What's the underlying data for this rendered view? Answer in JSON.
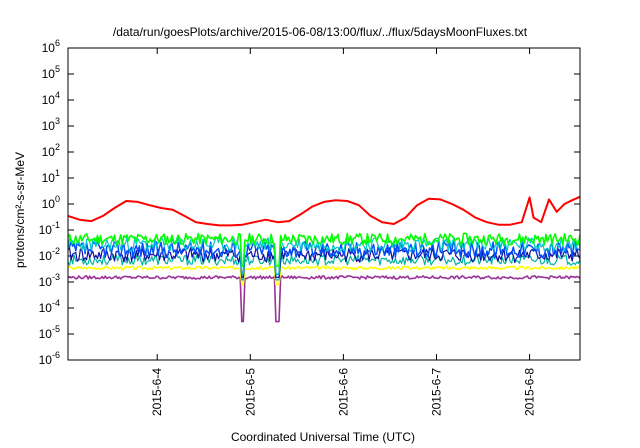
{
  "chart_data": {
    "type": "line",
    "title": "/data/run/goesPlots/archive/2015-06-08/13:00/flux/../flux/5daysMoonFluxes.txt",
    "xlabel": "Coordinated Universal Time (UTC)",
    "ylabel": "protons/cm²-s-sr-MeV",
    "y_scale": "log",
    "ylim": [
      "1e-6",
      "1e6"
    ],
    "y_ticks": [
      {
        "value": "1e-6",
        "base": "10",
        "exp": "-6"
      },
      {
        "value": "1e-5",
        "base": "10",
        "exp": "-5"
      },
      {
        "value": "1e-4",
        "base": "10",
        "exp": "-4"
      },
      {
        "value": "1e-3",
        "base": "10",
        "exp": "-3"
      },
      {
        "value": "1e-2",
        "base": "10",
        "exp": "-2"
      },
      {
        "value": "1e-1",
        "base": "10",
        "exp": "-1"
      },
      {
        "value": "1e0",
        "base": "10",
        "exp": "0"
      },
      {
        "value": "1e1",
        "base": "10",
        "exp": "1"
      },
      {
        "value": "1e2",
        "base": "10",
        "exp": "2"
      },
      {
        "value": "1e3",
        "base": "10",
        "exp": "3"
      },
      {
        "value": "1e4",
        "base": "10",
        "exp": "4"
      },
      {
        "value": "1e5",
        "base": "10",
        "exp": "5"
      },
      {
        "value": "1e6",
        "base": "10",
        "exp": "6"
      }
    ],
    "xlim": [
      "2015-06-03T01:00",
      "2015-06-08T13:00"
    ],
    "x_ticks": [
      {
        "date": "2015-06-04",
        "label": "2015-6-4"
      },
      {
        "date": "2015-06-05",
        "label": "2015-6-5"
      },
      {
        "date": "2015-06-06",
        "label": "2015-6-6"
      },
      {
        "date": "2015-06-07",
        "label": "2015-6-7"
      },
      {
        "date": "2015-06-08",
        "label": "2015-6-8"
      }
    ],
    "grid": false,
    "legend": "none",
    "series": [
      {
        "color": "#ff0000",
        "width": 2,
        "points": [
          [
            "2015-06-03T01:00",
            0.35
          ],
          [
            "2015-06-03T04:00",
            0.25
          ],
          [
            "2015-06-03T07:00",
            0.22
          ],
          [
            "2015-06-03T10:00",
            0.35
          ],
          [
            "2015-06-03T13:00",
            0.7
          ],
          [
            "2015-06-03T16:00",
            1.3
          ],
          [
            "2015-06-03T19:00",
            1.2
          ],
          [
            "2015-06-03T22:00",
            0.9
          ],
          [
            "2015-06-04T01:00",
            0.7
          ],
          [
            "2015-06-04T04:00",
            0.6
          ],
          [
            "2015-06-04T07:00",
            0.35
          ],
          [
            "2015-06-04T10:00",
            0.2
          ],
          [
            "2015-06-04T13:00",
            0.17
          ],
          [
            "2015-06-04T16:00",
            0.15
          ],
          [
            "2015-06-04T19:00",
            0.15
          ],
          [
            "2015-06-04T22:00",
            0.16
          ],
          [
            "2015-06-05T01:00",
            0.2
          ],
          [
            "2015-06-05T04:00",
            0.25
          ],
          [
            "2015-06-05T07:00",
            0.2
          ],
          [
            "2015-06-05T10:00",
            0.22
          ],
          [
            "2015-06-05T13:00",
            0.4
          ],
          [
            "2015-06-05T16:00",
            0.8
          ],
          [
            "2015-06-05T19:00",
            1.2
          ],
          [
            "2015-06-05T22:00",
            1.4
          ],
          [
            "2015-06-06T01:00",
            1.3
          ],
          [
            "2015-06-06T04:00",
            0.9
          ],
          [
            "2015-06-06T07:00",
            0.35
          ],
          [
            "2015-06-06T10:00",
            0.2
          ],
          [
            "2015-06-06T13:00",
            0.17
          ],
          [
            "2015-06-06T16:00",
            0.3
          ],
          [
            "2015-06-06T19:00",
            0.9
          ],
          [
            "2015-06-06T22:00",
            1.6
          ],
          [
            "2015-06-07T01:00",
            1.5
          ],
          [
            "2015-06-07T04:00",
            1.0
          ],
          [
            "2015-06-07T07:00",
            0.6
          ],
          [
            "2015-06-07T10:00",
            0.3
          ],
          [
            "2015-06-07T13:00",
            0.2
          ],
          [
            "2015-06-07T16:00",
            0.16
          ],
          [
            "2015-06-07T19:00",
            0.16
          ],
          [
            "2015-06-07T22:00",
            0.2
          ],
          [
            "2015-06-08T00:00",
            1.8
          ],
          [
            "2015-06-08T01:00",
            0.3
          ],
          [
            "2015-06-08T03:00",
            0.2
          ],
          [
            "2015-06-08T05:00",
            1.5
          ],
          [
            "2015-06-08T07:00",
            0.5
          ],
          [
            "2015-06-08T09:00",
            1.0
          ],
          [
            "2015-06-08T11:00",
            1.4
          ],
          [
            "2015-06-08T13:00",
            1.9
          ]
        ]
      },
      {
        "color": "#00ff00",
        "width": 1.6,
        "center": 0.045,
        "spread": 0.22,
        "dip": 0.004,
        "seed": 11
      },
      {
        "color": "#00c8c8",
        "width": 1.2,
        "center": 0.028,
        "spread": 0.28,
        "dip": 0.002,
        "seed": 23
      },
      {
        "color": "#0050ff",
        "width": 1.5,
        "center": 0.018,
        "spread": 0.32,
        "dip": 0.002,
        "seed": 37
      },
      {
        "color": "#1010a0",
        "width": 1.2,
        "center": 0.011,
        "spread": 0.28,
        "dip": 0.0015,
        "seed": 41
      },
      {
        "color": "#00b4a0",
        "width": 1.2,
        "center": 0.007,
        "spread": 0.2,
        "dip": 0.0012,
        "seed": 53
      },
      {
        "color": "#ffff00",
        "width": 1.6,
        "center": 0.0035,
        "spread": 0.06,
        "dip": 0.0008,
        "seed": 67
      },
      {
        "color": "#993399",
        "width": 1.6,
        "center": 0.0015,
        "spread": 0.06,
        "dip": 3e-05,
        "seed": 79
      }
    ]
  }
}
